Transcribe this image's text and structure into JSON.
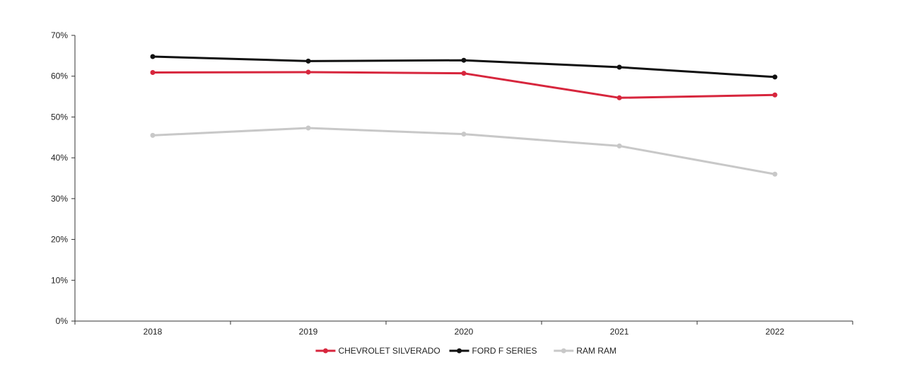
{
  "chart_data": {
    "type": "line",
    "categories": [
      "2018",
      "2019",
      "2020",
      "2021",
      "2022"
    ],
    "ylim": [
      0,
      70
    ],
    "yticks": [
      0,
      10,
      20,
      30,
      40,
      50,
      60,
      70
    ],
    "ytick_suffix": "%",
    "grid": false,
    "legend_position": "bottom",
    "series": [
      {
        "name": "CHEVROLET SILVERADO",
        "color": "#d7263d",
        "values": [
          60.9,
          61.0,
          60.7,
          54.7,
          55.4
        ]
      },
      {
        "name": "FORD F SERIES",
        "color": "#111111",
        "values": [
          64.8,
          63.7,
          63.9,
          62.2,
          59.8
        ]
      },
      {
        "name": "RAM RAM",
        "color": "#c8c8c8",
        "values": [
          45.5,
          47.3,
          45.8,
          42.9,
          36.0
        ]
      }
    ]
  }
}
